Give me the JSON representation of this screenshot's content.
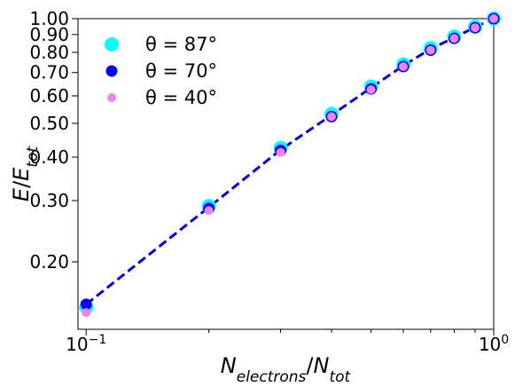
{
  "chart_data": {
    "type": "scatter",
    "xscale": "log",
    "yscale": "log",
    "xlim": [
      0.0955,
      1.0
    ],
    "ylim": [
      0.128,
      1.0
    ],
    "xlabel": {
      "base": "N",
      "sub": "electrons",
      "sep": "/",
      "base2": "N",
      "sub2": "tot"
    },
    "ylabel": {
      "base": "E",
      "sep": "/",
      "base2": "E",
      "sub2": "tot"
    },
    "xticks": [
      {
        "value": 0.1,
        "base": "10",
        "exp": "−1"
      },
      {
        "value": 1.0,
        "base": "10",
        "exp": "0"
      }
    ],
    "yticks": [
      {
        "value": 0.2,
        "label": "0.20"
      },
      {
        "value": 0.3,
        "label": "0.30"
      },
      {
        "value": 0.4,
        "label": "0.40"
      },
      {
        "value": 0.5,
        "label": "0.50"
      },
      {
        "value": 0.6,
        "label": "0.60"
      },
      {
        "value": 0.7,
        "label": "0.70"
      },
      {
        "value": 0.8,
        "label": "0.80"
      },
      {
        "value": 0.9,
        "label": "0.90"
      },
      {
        "value": 1.0,
        "label": "1.00"
      }
    ],
    "grid": false,
    "legend_position": "top-left",
    "series": [
      {
        "name": "θ = 87°",
        "color": "#00ffff",
        "marker_size": "large",
        "x": [
          0.1,
          0.2,
          0.3,
          0.4,
          0.5,
          0.6,
          0.7,
          0.8,
          0.9,
          1.0
        ],
        "y": [
          0.148,
          0.289,
          0.425,
          0.532,
          0.638,
          0.738,
          0.823,
          0.887,
          0.948,
          1.0
        ]
      },
      {
        "name": "θ = 70°",
        "color": "#0000ff",
        "marker_size": "medium",
        "x": [
          0.1,
          0.2,
          0.3,
          0.4,
          0.5,
          0.6,
          0.7,
          0.8,
          0.9,
          1.0
        ],
        "y": [
          0.151,
          0.285,
          0.418,
          0.523,
          0.628,
          0.728,
          0.812,
          0.878,
          0.942,
          1.0
        ]
      },
      {
        "name": "θ = 40°",
        "color": "#ee82ee",
        "marker_size": "small",
        "x": [
          0.1,
          0.2,
          0.3,
          0.4,
          0.5,
          0.6,
          0.7,
          0.8,
          0.9,
          1.0
        ],
        "y": [
          0.143,
          0.281,
          0.413,
          0.523,
          0.625,
          0.728,
          0.812,
          0.878,
          0.942,
          1.0
        ]
      }
    ],
    "fit_line": {
      "color": "#0000dd",
      "style": "dashed",
      "x": [
        0.1,
        0.2,
        0.3,
        0.4,
        0.5,
        0.6,
        0.7,
        0.8,
        0.9,
        1.0
      ],
      "y": [
        0.151,
        0.287,
        0.42,
        0.528,
        0.633,
        0.733,
        0.818,
        0.882,
        0.945,
        1.0
      ]
    }
  }
}
